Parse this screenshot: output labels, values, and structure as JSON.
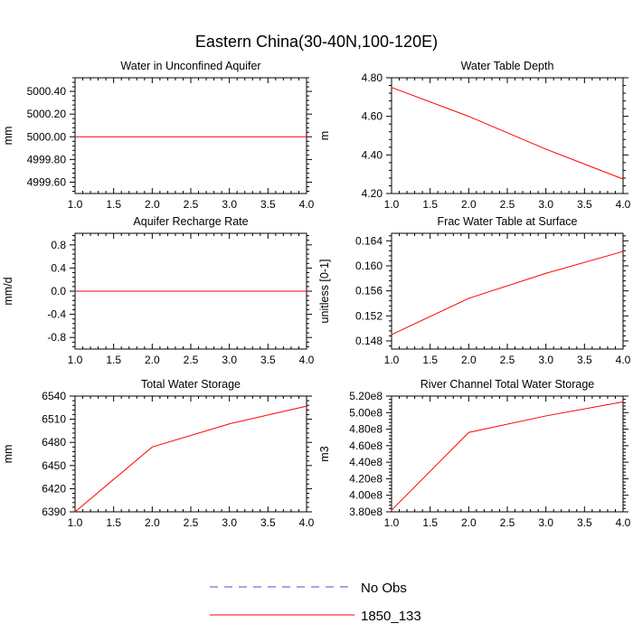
{
  "figure": {
    "title": "Eastern China(30-40N,100-120E)",
    "colors": {
      "axis": "#000000",
      "model": "#ff0000",
      "obs": "#4b4bd2"
    }
  },
  "legend": {
    "obs_label": "No Obs",
    "model_label": "1850_133"
  },
  "chart_data": [
    {
      "type": "line",
      "title": "Water in Unconfined Aquifer",
      "ylabel": "mm",
      "x": [
        1,
        2,
        3,
        4
      ],
      "series": [
        {
          "name": "1850_133",
          "values": [
            5000.0,
            5000.0,
            5000.0,
            5000.0
          ]
        }
      ],
      "xlim": [
        1,
        4
      ],
      "ylim": [
        4999.5,
        5000.52
      ],
      "xticks": [
        1.0,
        1.5,
        2.0,
        2.5,
        3.0,
        3.5,
        4.0
      ],
      "xtick_labels": [
        "1.0",
        "1.5",
        "2.0",
        "2.5",
        "3.0",
        "3.5",
        "4.0"
      ],
      "yticks": [
        4999.6,
        4999.8,
        5000.0,
        5000.2,
        5000.4
      ],
      "ytick_labels": [
        "4999.60",
        "4999.80",
        "5000.00",
        "5000.20",
        "5000.40"
      ]
    },
    {
      "type": "line",
      "title": "Water Table Depth",
      "ylabel": "m",
      "x": [
        1,
        2,
        3,
        4
      ],
      "series": [
        {
          "name": "1850_133",
          "values": [
            4.75,
            4.6,
            4.43,
            4.275
          ]
        }
      ],
      "xlim": [
        1,
        4
      ],
      "ylim": [
        4.2,
        4.8
      ],
      "xticks": [
        1.0,
        1.5,
        2.0,
        2.5,
        3.0,
        3.5,
        4.0
      ],
      "xtick_labels": [
        "1.0",
        "1.5",
        "2.0",
        "2.5",
        "3.0",
        "3.5",
        "4.0"
      ],
      "yticks": [
        4.2,
        4.4,
        4.6,
        4.8
      ],
      "ytick_labels": [
        "4.20",
        "4.40",
        "4.60",
        "4.80"
      ]
    },
    {
      "type": "line",
      "title": "Aquifer Recharge Rate",
      "ylabel": "mm/d",
      "x": [
        1,
        2,
        3,
        4
      ],
      "series": [
        {
          "name": "1850_133",
          "values": [
            0,
            0,
            0,
            0
          ]
        }
      ],
      "xlim": [
        1,
        4
      ],
      "ylim": [
        -1.0,
        1.0
      ],
      "xticks": [
        1.0,
        1.5,
        2.0,
        2.5,
        3.0,
        3.5,
        4.0
      ],
      "xtick_labels": [
        "1.0",
        "1.5",
        "2.0",
        "2.5",
        "3.0",
        "3.5",
        "4.0"
      ],
      "yticks": [
        -0.8,
        -0.4,
        0.0,
        0.4,
        0.8
      ],
      "ytick_labels": [
        "-0.8",
        "-0.4",
        "0.0",
        "0.4",
        "0.8"
      ]
    },
    {
      "type": "line",
      "title": "Frac Water Table at Surface",
      "ylabel": "unitless [0-1]",
      "x": [
        1,
        2,
        3,
        4
      ],
      "series": [
        {
          "name": "1850_133",
          "values": [
            0.149,
            0.1548,
            0.1588,
            0.1623
          ]
        }
      ],
      "xlim": [
        1,
        4
      ],
      "ylim": [
        0.1467,
        0.1652
      ],
      "xticks": [
        1.0,
        1.5,
        2.0,
        2.5,
        3.0,
        3.5,
        4.0
      ],
      "xtick_labels": [
        "1.0",
        "1.5",
        "2.0",
        "2.5",
        "3.0",
        "3.5",
        "4.0"
      ],
      "yticks": [
        0.148,
        0.152,
        0.156,
        0.16,
        0.164
      ],
      "ytick_labels": [
        "0.148",
        "0.152",
        "0.156",
        "0.160",
        "0.164"
      ]
    },
    {
      "type": "line",
      "title": "Total Water Storage",
      "ylabel": "mm",
      "x": [
        1,
        2,
        3,
        4
      ],
      "series": [
        {
          "name": "1850_133",
          "values": [
            6390,
            6474,
            6504,
            6527
          ]
        }
      ],
      "xlim": [
        1,
        4
      ],
      "ylim": [
        6390,
        6540
      ],
      "xticks": [
        1.0,
        1.5,
        2.0,
        2.5,
        3.0,
        3.5,
        4.0
      ],
      "xtick_labels": [
        "1.0",
        "1.5",
        "2.0",
        "2.5",
        "3.0",
        "3.5",
        "4.0"
      ],
      "yticks": [
        6390,
        6420,
        6450,
        6480,
        6510,
        6540
      ],
      "ytick_labels": [
        "6390",
        "6420",
        "6450",
        "6480",
        "6510",
        "6540"
      ]
    },
    {
      "type": "line",
      "title": "River Channel Total Water Storage",
      "ylabel": "m3",
      "x": [
        1,
        2,
        3,
        4
      ],
      "series": [
        {
          "name": "1850_133",
          "values": [
            382000000.0,
            476000000.0,
            496000000.0,
            513000000.0
          ]
        }
      ],
      "xlim": [
        1,
        4
      ],
      "ylim": [
        380000000.0,
        520000000.0
      ],
      "xticks": [
        1.0,
        1.5,
        2.0,
        2.5,
        3.0,
        3.5,
        4.0
      ],
      "xtick_labels": [
        "1.0",
        "1.5",
        "2.0",
        "2.5",
        "3.0",
        "3.5",
        "4.0"
      ],
      "yticks": [
        380000000.0,
        400000000.0,
        420000000.0,
        440000000.0,
        460000000.0,
        480000000.0,
        500000000.0,
        520000000.0
      ],
      "ytick_labels": [
        "3.80e8",
        "4.00e8",
        "4.20e8",
        "4.40e8",
        "4.60e8",
        "4.80e8",
        "5.00e8",
        "5.20e8"
      ]
    }
  ]
}
